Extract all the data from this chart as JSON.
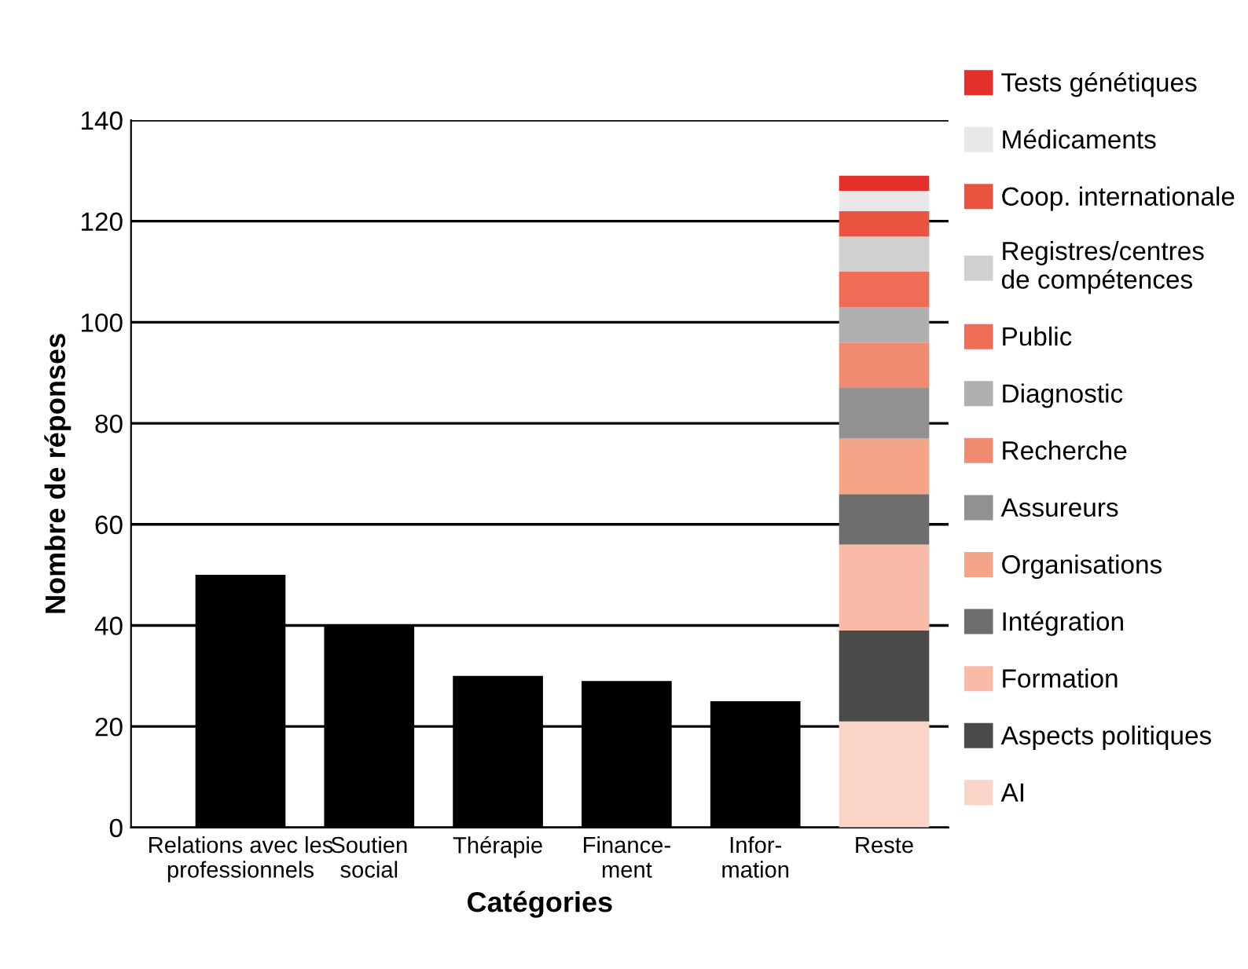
{
  "chart_data": {
    "type": "bar",
    "stacked": true,
    "xlabel": "Catégories",
    "ylabel": "Nombre de réponses",
    "categories": [
      "Relations avec les\nprofessionnels",
      "Soutien\nsocial",
      "Thérapie",
      "Finance-\nment",
      "Infor-\nmation",
      "Reste"
    ],
    "series": [
      {
        "color": "#000000",
        "values": [
          50,
          40,
          30,
          29,
          25,
          null
        ]
      },
      {
        "name": "AI",
        "color": "#f9d4c7",
        "values": [
          null,
          null,
          null,
          null,
          null,
          21
        ]
      },
      {
        "name": "Aspects politiques",
        "color": "#4a4a49",
        "values": [
          null,
          null,
          null,
          null,
          null,
          18
        ]
      },
      {
        "name": "Formation",
        "color": "#f8bba8",
        "values": [
          null,
          null,
          null,
          null,
          null,
          17
        ]
      },
      {
        "name": "Intégration",
        "color": "#6e6e6e",
        "values": [
          null,
          null,
          null,
          null,
          null,
          10
        ]
      },
      {
        "name": "Organisations",
        "color": "#f4a487",
        "values": [
          null,
          null,
          null,
          null,
          null,
          11
        ]
      },
      {
        "name": "Assureurs",
        "color": "#919191",
        "values": [
          null,
          null,
          null,
          null,
          null,
          10
        ]
      },
      {
        "name": "Recherche",
        "color": "#f08a70",
        "values": [
          null,
          null,
          null,
          null,
          null,
          9
        ]
      },
      {
        "name": "Diagnostic",
        "color": "#b0b0b2",
        "values": [
          null,
          null,
          null,
          null,
          null,
          7
        ]
      },
      {
        "name": "Public",
        "color": "#ee6d54",
        "values": [
          null,
          null,
          null,
          null,
          null,
          7
        ]
      },
      {
        "name": "Registres/centres\nde compétences",
        "color": "#d0d0d0",
        "values": [
          null,
          null,
          null,
          null,
          null,
          7
        ]
      },
      {
        "name": "Coop. internationale",
        "color": "#e9533f",
        "values": [
          null,
          null,
          null,
          null,
          null,
          5
        ]
      },
      {
        "name": "Médicaments",
        "color": "#e8e8e8",
        "values": [
          null,
          null,
          null,
          null,
          null,
          4
        ]
      },
      {
        "name": "Tests génétiques",
        "color": "#e3302a",
        "values": [
          null,
          null,
          null,
          null,
          null,
          3
        ]
      }
    ],
    "ylim": [
      0,
      140
    ],
    "yticks": [
      0,
      20,
      40,
      60,
      80,
      100,
      120,
      140
    ],
    "grid": "y",
    "legend": "right"
  }
}
